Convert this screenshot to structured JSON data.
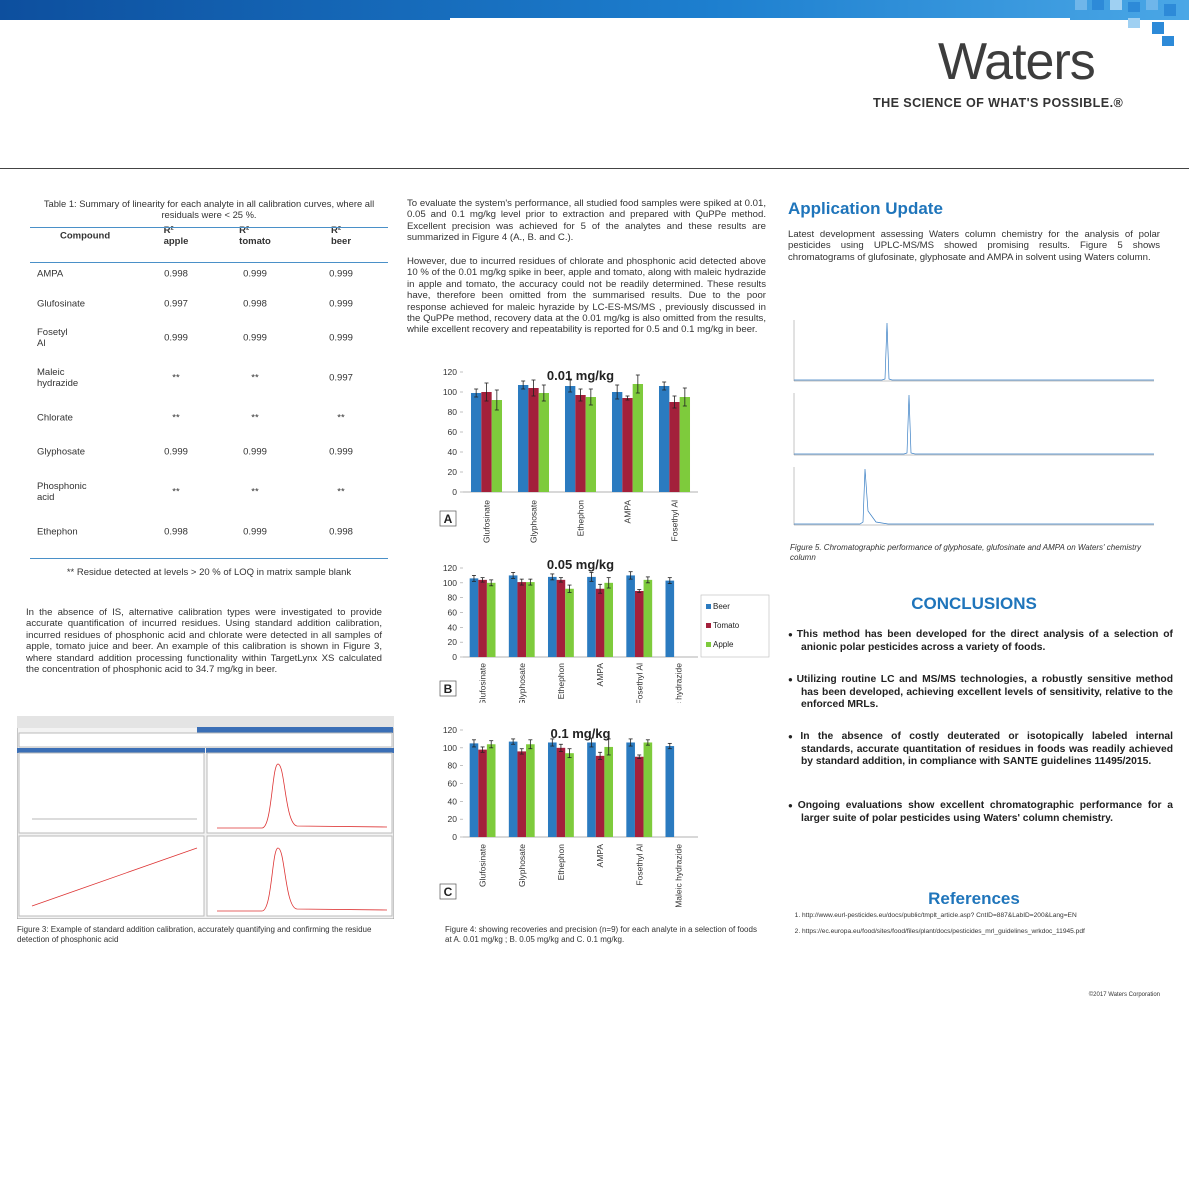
{
  "header": {
    "logo": "Waters",
    "tagline": "THE SCIENCE OF WHAT'S POSSIBLE.®"
  },
  "table": {
    "caption": "Table 1: Summary of linearity for each analyte in all calibration curves, where all residuals were < 25 %.",
    "columns": [
      "Compound",
      "R² apple",
      "R² tomato",
      "R² beer"
    ],
    "rows": [
      [
        "AMPA",
        "0.998",
        "0.999",
        "0.999"
      ],
      [
        "Glufosinate",
        "0.997",
        "0.998",
        "0.999"
      ],
      [
        "Fosetyl Al",
        "0.999",
        "0.999",
        "0.999"
      ],
      [
        "Maleic hydrazide",
        "**",
        "**",
        "0.997"
      ],
      [
        "Chlorate",
        "**",
        "**",
        "**"
      ],
      [
        "Glyphosate",
        "0.999",
        "0.999",
        "0.999"
      ],
      [
        "Phosphonic acid",
        "**",
        "**",
        "**"
      ],
      [
        "Ethephon",
        "0.998",
        "0.999",
        "0.998"
      ]
    ],
    "footnote": "** Residue detected at levels > 20 % of LOQ in matrix sample blank"
  },
  "calibration_text": "In the absence of IS, alternative calibration types were investigated to provide accurate quantification of incurred residues. Using standard addition calibration, incurred residues of phosphonic acid and chlorate were detected in all samples of apple, tomato juice and beer. An example of this calibration is shown in Figure 3, where standard addition processing functionality within TargetLynx XS calculated the concentration of phosphonic acid to 34.7 mg/kg in beer.",
  "figure3_caption": "Figure 3: Example of standard addition calibration, accurately quantifying and confirming the residue detection of phosphonic acid",
  "results_text": [
    "To evaluate the system's performance, all studied food samples were spiked at 0.01, 0.05 and 0.1 mg/kg level prior to extraction and prepared with QuPPe method. Excellent precision was achieved for 5 of the analytes and these results are summarized in Figure 4 (A., B. and C.).",
    "However, due to incurred residues of chlorate and phosphonic acid detected above 10 % of the 0.01 mg/kg spike in beer, apple and tomato, along with maleic hydrazide in apple and tomato, the accuracy could not be readily determined. These results have, therefore been omitted from the summarised results. Due to the poor response achieved for maleic hyrazide by LC-ES-MS/MS , previously discussed in the QuPPe method, recovery data at the 0.01 mg/kg is also omitted from the results, while excellent recovery and repeatability is reported for 0.5 and 0.1 mg/kg in beer."
  ],
  "figure4_caption": "Figure 4: showing recoveries and precision (n=9) for each analyte in a selection of foods at A. 0.01 mg/kg ; B. 0.05 mg/kg and C. 0.1 mg/kg.",
  "chart_data": [
    {
      "type": "bar",
      "title": "0.01 mg/kg",
      "panel": "A",
      "categories": [
        "Glufosinate",
        "Glyphosate",
        "Ethephon",
        "AMPA",
        "Fosethyl Al"
      ],
      "series": [
        {
          "color": "#2b7bc0",
          "values": [
            99,
            107,
            106,
            100,
            106
          ],
          "errors": [
            4,
            4,
            6,
            7,
            4
          ]
        },
        {
          "color": "#a3203b",
          "values": [
            100,
            104,
            97,
            94,
            90
          ],
          "errors": [
            9,
            8,
            6,
            2,
            6
          ]
        },
        {
          "color": "#7ecb3c",
          "values": [
            92,
            99,
            95,
            108,
            95
          ],
          "errors": [
            10,
            8,
            8,
            9,
            9
          ]
        }
      ],
      "ylim": [
        0,
        120
      ],
      "yticks": [
        0,
        20,
        40,
        60,
        80,
        100,
        120
      ]
    },
    {
      "type": "bar",
      "title": "0.05 mg/kg",
      "panel": "B",
      "categories": [
        "Glufosinate",
        "Glyphosate",
        "Ethephon",
        "AMPA",
        "Fosethyl Al",
        "Maleic hydrazide"
      ],
      "series": [
        {
          "name": "Beer",
          "color": "#2b7bc0",
          "values": [
            106,
            110,
            108,
            108,
            110,
            103
          ],
          "errors": [
            4,
            4,
            4,
            6,
            5,
            4
          ]
        },
        {
          "name": "Tomato",
          "color": "#a3203b",
          "values": [
            104,
            101,
            104,
            92,
            89,
            null
          ],
          "errors": [
            3,
            4,
            3,
            6,
            2,
            null
          ]
        },
        {
          "name": "Apple",
          "color": "#7ecb3c",
          "values": [
            100,
            101,
            92,
            100,
            104,
            null
          ],
          "errors": [
            4,
            4,
            5,
            7,
            4,
            null
          ]
        }
      ],
      "ylim": [
        0,
        120
      ],
      "yticks": [
        0,
        20,
        40,
        60,
        80,
        100,
        120
      ],
      "legend": "right"
    },
    {
      "type": "bar",
      "title": "0.1 mg/kg",
      "panel": "C",
      "categories": [
        "Glufosinate",
        "Glyphosate",
        "Ethephon",
        "AMPA",
        "Fosethyl Al",
        "Maleic hydrazide"
      ],
      "series": [
        {
          "color": "#2b7bc0",
          "values": [
            105,
            107,
            106,
            106,
            106,
            102
          ],
          "errors": [
            4,
            3,
            4,
            5,
            4,
            3
          ]
        },
        {
          "color": "#a3203b",
          "values": [
            98,
            96,
            100,
            91,
            90,
            null
          ],
          "errors": [
            3,
            3,
            4,
            4,
            2,
            null
          ]
        },
        {
          "color": "#7ecb3c",
          "values": [
            104,
            104,
            94,
            101,
            106,
            null
          ],
          "errors": [
            4,
            5,
            5,
            9,
            3,
            null
          ]
        }
      ],
      "ylim": [
        0,
        120
      ],
      "yticks": [
        0,
        20,
        40,
        60,
        80,
        100,
        120
      ]
    }
  ],
  "update": {
    "title": "Application Update",
    "text": "Latest development assessing Waters column chemistry for the analysis of polar pesticides using UPLC-MS/MS showed promising results. Figure 5 shows chromatograms of glufosinate, glyphosate and AMPA in solvent using Waters column.",
    "figure5_caption": "Figure 5. Chromatographic performance of glyphosate, glufosinate and AMPA on Waters' chemistry column"
  },
  "conclusions": {
    "title": "CONCLUSIONS",
    "items": [
      "This method has been developed for the direct analysis of a selection of anionic polar pesticides across a variety of foods.",
      "Utilizing routine LC and MS/MS technologies, a robustly sensitive method has been developed, achieving excellent levels of sensitivity, relative to the enforced MRLs.",
      "In the absence of costly deuterated or isotopically labeled internal standards, accurate quantitation of residues in foods was readily achieved by standard addition, in compliance with SANTE guidelines 11495/2015.",
      "Ongoing evaluations show excellent chromatographic performance for a larger suite of polar pesticides using Waters' column chemistry."
    ]
  },
  "references": {
    "title": "References",
    "items": [
      "http://www.eurl-pesticides.eu/docs/public/tmplt_article.asp? CntID=887&LabID=200&Lang=EN",
      "https://ec.europa.eu/food/sites/food/files/plant/docs/pesticides_mrl_guidelines_wrkdoc_11945.pdf"
    ]
  },
  "footer": "©2017 Waters Corporation"
}
